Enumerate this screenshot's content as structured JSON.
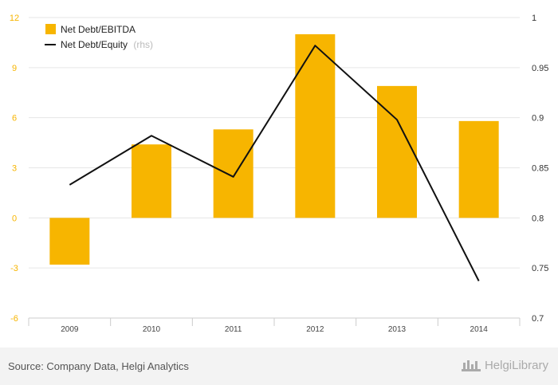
{
  "chart_data": {
    "type": "bar",
    "categories": [
      "2009",
      "2010",
      "2011",
      "2012",
      "2013",
      "2014"
    ],
    "series": [
      {
        "name": "Net Debt/EBITDA",
        "type": "bar",
        "axis": "left",
        "color": "#f7b500",
        "values": [
          -2.8,
          4.4,
          5.3,
          11.0,
          7.9,
          5.8
        ]
      },
      {
        "name": "Net Debt/Equity",
        "type": "line",
        "axis": "right",
        "color": "#111111",
        "values": [
          0.833,
          0.882,
          0.841,
          0.972,
          0.898,
          0.737
        ]
      }
    ],
    "legend_suffix": "(rhs)",
    "y_left": {
      "min": -6,
      "max": 12,
      "ticks": [
        "-6",
        "-3",
        "0",
        "3",
        "6",
        "9",
        "12"
      ],
      "tick_color": "#f7b500"
    },
    "y_right": {
      "min": 0.7,
      "max": 1.0,
      "ticks": [
        "0.7",
        "0.75",
        "0.8",
        "0.85",
        "0.9",
        "0.95",
        "1"
      ]
    },
    "grid": true,
    "legend_position": "top-left"
  },
  "footer": {
    "source": "Source: Company Data, Helgi Analytics",
    "logo_text": "HelgiLibrary"
  }
}
